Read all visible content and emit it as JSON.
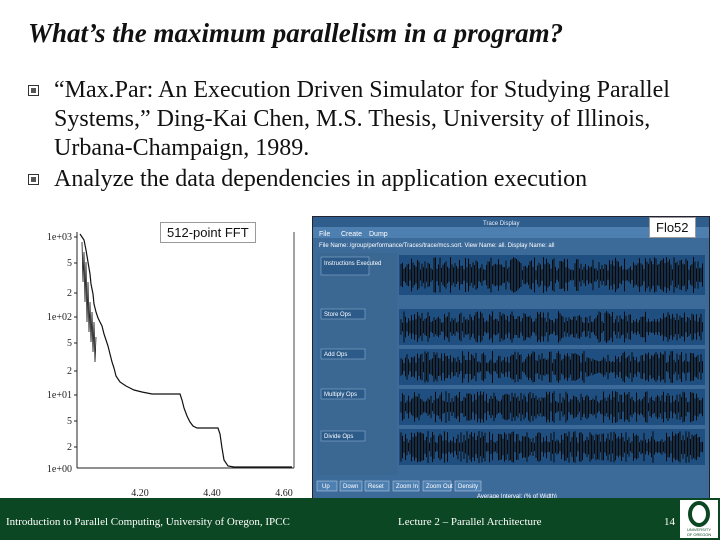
{
  "slide": {
    "title": "What’s the maximum parallelism in a program?",
    "bullets": [
      "“Max.Par: An Execution Driven Simulator for Studying Parallel Systems,” Ding-Kai Chen, M.S. Thesis, University of Illinois, Urbana-Champaign, 1989.",
      "Analyze the data dependencies in application execution"
    ]
  },
  "figures": {
    "left": {
      "label": "512-point FFT",
      "y_ticks": [
        "1e+03",
        "5",
        "2",
        "1e+02",
        "5",
        "2",
        "1e+01",
        "5",
        "2",
        "1e+00"
      ],
      "x_ticks": [
        "4.20",
        "4.40",
        "4.60"
      ]
    },
    "right": {
      "label": "Flo52",
      "menu": [
        "File",
        "Create",
        "Dump"
      ],
      "path_text": "File Name: /group/performance/Traces/trace/mcs.sort.  View Name: all.  Display Name: all",
      "panels": [
        "Instructions Executed",
        "Store Ops",
        "Add Ops",
        "Multiply Ops",
        "Divide Ops"
      ],
      "buttons": [
        "Up",
        "Down",
        "Reset",
        "Zoom In",
        "Zoom Out",
        "Density"
      ],
      "status": "Average Interval: (% of Width)"
    }
  },
  "footer": {
    "left": "Introduction to Parallel Computing, University of Oregon, IPCC",
    "center": "Lecture 2 – Parallel Architecture",
    "page": "14"
  },
  "logo": {
    "text": "UNIVERSITY OF OREGON"
  }
}
